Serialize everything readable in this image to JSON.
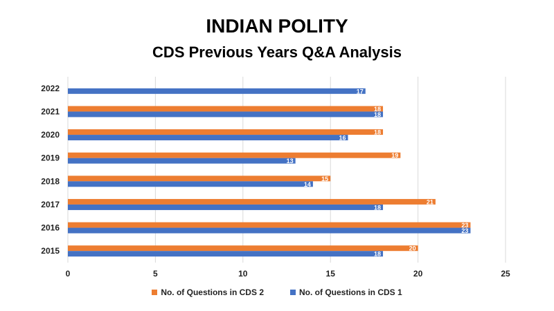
{
  "title": "INDIAN POLITY",
  "subtitle": "CDS Previous Years Q&A Analysis",
  "chart_data": {
    "type": "bar",
    "orientation": "horizontal",
    "categories": [
      "2015",
      "2016",
      "2017",
      "2018",
      "2019",
      "2020",
      "2021",
      "2022"
    ],
    "series": [
      {
        "name": "No. of Questions in CDS 2",
        "color": "#ED7D31",
        "values": [
          20,
          23,
          21,
          15,
          19,
          18,
          18,
          null
        ]
      },
      {
        "name": "No. of Questions in CDS 1",
        "color": "#4472C4",
        "values": [
          18,
          23,
          18,
          14,
          13,
          16,
          18,
          17
        ]
      }
    ],
    "x_ticks": [
      0,
      5,
      10,
      15,
      20,
      25
    ],
    "xlim": [
      0,
      25
    ],
    "grid": true,
    "legend_position": "bottom",
    "data_labels": true
  }
}
